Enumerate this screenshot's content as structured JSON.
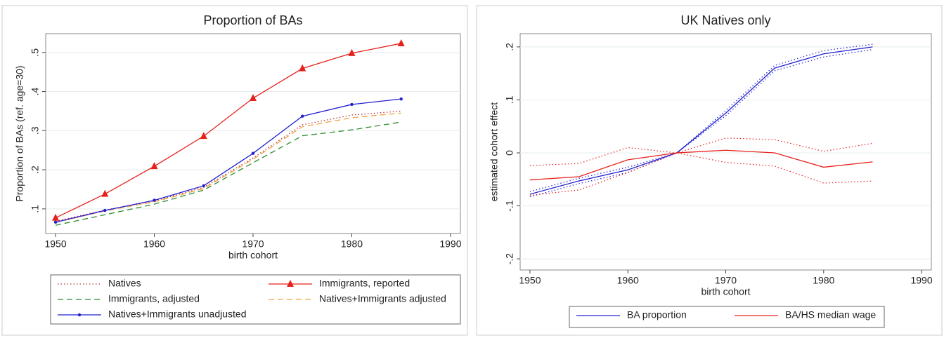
{
  "chart_data": [
    {
      "type": "line",
      "title": "Proportion of BAs",
      "x_label": "birth cohort",
      "y_label": "Proportion of BAs (ref. age=30)",
      "x": [
        1950,
        1955,
        1960,
        1965,
        1970,
        1975,
        1980,
        1985
      ],
      "xlim": [
        1949,
        1991
      ],
      "xticks": [
        1950,
        1960,
        1970,
        1980,
        1990
      ],
      "ylim": [
        0.037,
        0.548
      ],
      "yticks": [
        {
          "value": 0.1,
          "label": ".1"
        },
        {
          "value": 0.2,
          "label": ".2"
        },
        {
          "value": 0.3,
          "label": ".3"
        },
        {
          "value": 0.4,
          "label": ".4"
        },
        {
          "value": 0.5,
          "label": ".5"
        }
      ],
      "grid": true,
      "legend": "bottom",
      "series": [
        {
          "name": "Natives",
          "color": "#b03030",
          "style": "dotted",
          "marker": "none",
          "values": [
            0.068,
            0.097,
            0.12,
            0.155,
            0.23,
            0.315,
            0.34,
            0.35
          ]
        },
        {
          "name": "Immigrants, reported",
          "color": "#e8201c",
          "style": "solid",
          "marker": "triangle",
          "values": [
            0.077,
            0.138,
            0.209,
            0.286,
            0.383,
            0.459,
            0.498,
            0.523
          ]
        },
        {
          "name": "Immigrants, adjusted",
          "color": "#2e8b2e",
          "style": "dashed",
          "marker": "none",
          "values": [
            0.058,
            0.085,
            0.112,
            0.148,
            0.218,
            0.287,
            0.302,
            0.322
          ]
        },
        {
          "name": "Natives+Immigrants adjusted",
          "color": "#f4a040",
          "style": "dashed",
          "marker": "none",
          "values": [
            0.065,
            0.095,
            0.118,
            0.152,
            0.227,
            0.31,
            0.333,
            0.345
          ]
        },
        {
          "name": "Natives+Immigrants unadjusted",
          "color": "#2020d0",
          "style": "solid",
          "marker": "dot",
          "values": [
            0.066,
            0.096,
            0.122,
            0.159,
            0.242,
            0.337,
            0.367,
            0.381
          ]
        }
      ]
    },
    {
      "type": "line",
      "title": "UK Natives only",
      "x_label": "birth cohort",
      "y_label": "estimated cohort effect",
      "x": [
        1950,
        1955,
        1960,
        1965,
        1970,
        1975,
        1980,
        1985
      ],
      "xlim": [
        1949,
        1991
      ],
      "xticks": [
        1950,
        1960,
        1970,
        1980,
        1990
      ],
      "ylim": [
        -0.221,
        0.225
      ],
      "yticks": [
        {
          "value": -0.2,
          "label": "-.2"
        },
        {
          "value": -0.1,
          "label": "-.1"
        },
        0,
        {
          "value": 0.1,
          "label": ".1"
        },
        {
          "value": 0.2,
          "label": ".2"
        }
      ],
      "grid": true,
      "legend": "bottom",
      "series": [
        {
          "name": "BA proportion",
          "color": "#2020d0",
          "style": "solid",
          "marker": "none",
          "values": [
            -0.078,
            -0.053,
            -0.032,
            0,
            0.075,
            0.16,
            0.187,
            0.2
          ],
          "ci_high": [
            -0.073,
            -0.048,
            -0.027,
            0,
            0.08,
            0.165,
            0.193,
            0.205
          ],
          "ci_low": [
            -0.083,
            -0.058,
            -0.037,
            0,
            0.07,
            0.155,
            0.181,
            0.195
          ]
        },
        {
          "name": "BA/HS median wage",
          "color": "#e8201c",
          "style": "solid",
          "marker": "none",
          "values": [
            -0.051,
            -0.045,
            -0.013,
            0,
            0.005,
            0,
            -0.027,
            -0.017
          ],
          "ci_high": [
            -0.024,
            -0.02,
            0.01,
            0,
            0.028,
            0.025,
            0.003,
            0.018
          ],
          "ci_low": [
            -0.08,
            -0.07,
            -0.037,
            0,
            -0.018,
            -0.025,
            -0.057,
            -0.053
          ]
        }
      ]
    }
  ]
}
